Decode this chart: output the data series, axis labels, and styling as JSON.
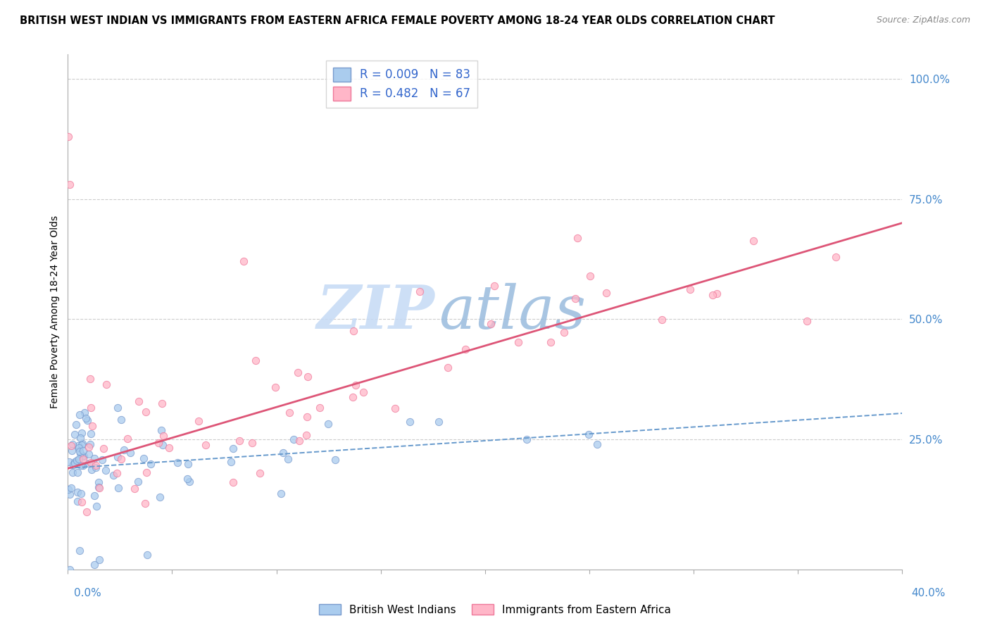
{
  "title": "BRITISH WEST INDIAN VS IMMIGRANTS FROM EASTERN AFRICA FEMALE POVERTY AMONG 18-24 YEAR OLDS CORRELATION CHART",
  "source": "Source: ZipAtlas.com",
  "ylabel": "Female Poverty Among 18-24 Year Olds",
  "y_tick_labels": [
    "100.0%",
    "75.0%",
    "50.0%",
    "25.0%"
  ],
  "y_tick_values": [
    1.0,
    0.75,
    0.5,
    0.25
  ],
  "xlim": [
    0.0,
    0.4
  ],
  "ylim": [
    -0.02,
    1.05
  ],
  "series1": {
    "label": "British West Indians",
    "R": 0.009,
    "N": 83,
    "color": "#aaccee",
    "edge_color": "#7799cc",
    "reg_color": "#6699cc",
    "reg_intercept": 0.215,
    "reg_slope": 0.025
  },
  "series2": {
    "label": "Immigrants from Eastern Africa",
    "R": 0.482,
    "N": 67,
    "color": "#ffb6c8",
    "edge_color": "#ee7799",
    "reg_color": "#dd5577",
    "reg_intercept": 0.19,
    "reg_slope": 1.3
  },
  "watermark_zip": "ZIP",
  "watermark_atlas": "atlas",
  "watermark_color_zip": "#c8ddf5",
  "watermark_color_atlas": "#aaccee",
  "background_color": "#ffffff",
  "grid_color": "#cccccc",
  "title_fontsize": 10.5,
  "source_fontsize": 9,
  "axis_label_color": "#4488cc"
}
